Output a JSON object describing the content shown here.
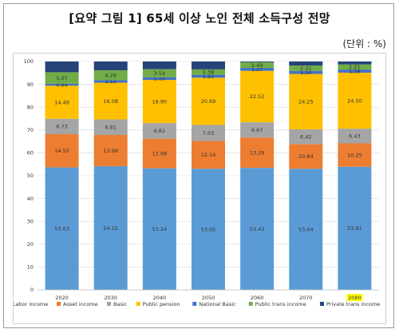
{
  "header": {
    "title": "[요약 그림 1] 65세 이상 노인 전체 소득구성 전망",
    "unit": "(단위 : %)"
  },
  "chart_data": {
    "type": "bar",
    "stacked": true,
    "categories": [
      "2020",
      "2030",
      "2040",
      "2050",
      "2060",
      "2070",
      "2080"
    ],
    "highlighted_category": "2080",
    "ylim": [
      0,
      100
    ],
    "yticks": [
      0,
      10,
      20,
      30,
      40,
      50,
      60,
      70,
      80,
      90,
      100
    ],
    "grid": true,
    "legend_position": "bottom",
    "series": [
      {
        "name": "Labor income",
        "color": "#5b9bd5",
        "values": [
          53.63,
          54.15,
          53.24,
          53.05,
          53.43,
          53.04,
          53.91
        ],
        "labels": [
          "53.63",
          "54.15",
          "53.24",
          "53.05",
          "53.43",
          "53.04",
          "53.91"
        ]
      },
      {
        "name": "Asset income",
        "color": "#ed7d31",
        "values": [
          14.55,
          13.68,
          12.98,
          12.14,
          13.29,
          10.84,
          10.25
        ],
        "labels": [
          "14.55",
          "13.68",
          "12.98",
          "12.14",
          "13.29",
          "10.84",
          "10.25"
        ]
      },
      {
        "name": "Basic",
        "color": "#a5a5a5",
        "values": [
          6.73,
          6.81,
          6.82,
          7.03,
          6.67,
          6.42,
          6.43
        ],
        "labels": [
          "6.73",
          "6.81",
          "6.82",
          "7.03",
          "6.67",
          "6.42",
          "6.43"
        ]
      },
      {
        "name": "Public pension",
        "color": "#ffc000",
        "values": [
          14.49,
          16.08,
          18.9,
          20.69,
          22.52,
          24.25,
          24.5
        ],
        "labels": [
          "14.49",
          "16.08",
          "18.90",
          "20.69",
          "22.52",
          "24.25",
          "24.50"
        ]
      },
      {
        "name": "National Basic",
        "color": "#4472c4",
        "values": [
          0.84,
          1.12,
          1.16,
          1.25,
          1.27,
          1.34,
          1.39
        ],
        "labels": [
          "0.84",
          "1.12",
          "1.16",
          "1.25",
          "1.27",
          "1.34",
          "1.39"
        ]
      },
      {
        "name": "Public trans income",
        "color": "#70ad47",
        "values": [
          5.07,
          4.29,
          3.54,
          2.38,
          2.49,
          2.31,
          2.21
        ],
        "labels": [
          "5.07",
          "4.29",
          "3.54",
          "2.38",
          "2.49",
          "2.31",
          "2.21"
        ]
      },
      {
        "name": "Private trans income",
        "color": "#264478",
        "values": [
          4.69,
          3.87,
          3.36,
          3.46,
          0.33,
          1.8,
          1.31
        ],
        "labels": [
          "",
          "",
          "",
          "",
          "",
          "",
          ""
        ]
      }
    ]
  }
}
